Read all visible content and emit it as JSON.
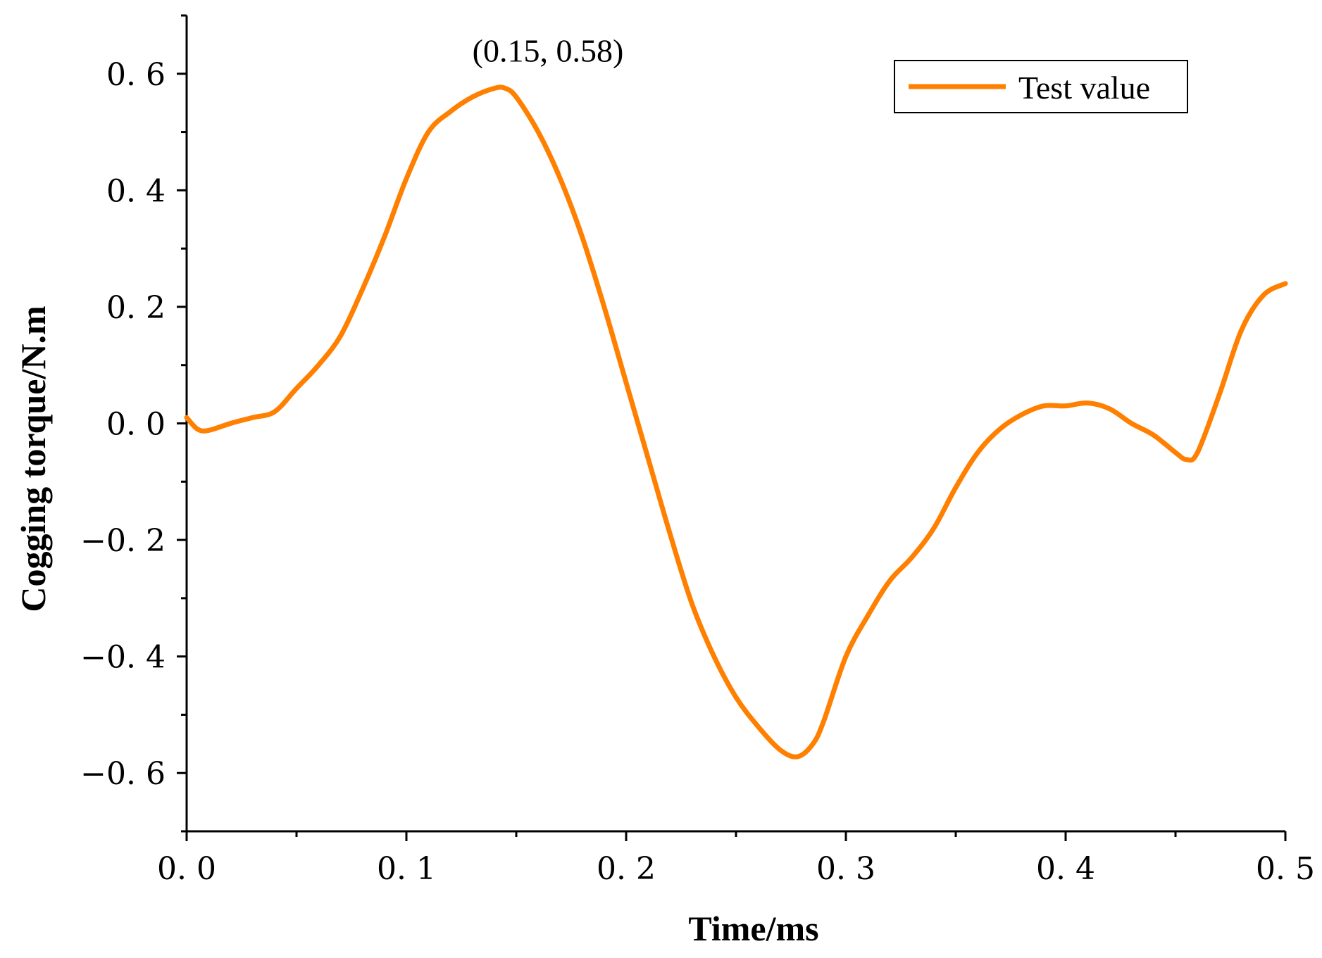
{
  "chart_data": {
    "type": "line",
    "title": "",
    "xlabel": "Time/ms",
    "ylabel": "Cogging torque/N.m",
    "xlim": [
      0,
      0.5
    ],
    "ylim": [
      -0.7,
      0.7
    ],
    "grid": false,
    "legend_position": "top-right",
    "x_ticks": [
      0.0,
      0.1,
      0.2,
      0.3,
      0.4,
      0.5
    ],
    "x_tick_labels": [
      "0. 0",
      "0. 1",
      "0. 2",
      "0. 3",
      "0. 4",
      "0. 5"
    ],
    "y_ticks": [
      0.6,
      0.4,
      0.2,
      0.0,
      -0.2,
      -0.4,
      -0.6
    ],
    "y_tick_labels": [
      "0. 6",
      "0. 4",
      "0. 2",
      "0. 0",
      "−0. 2",
      "−0. 4",
      "−0. 6"
    ],
    "annotation": {
      "text": "(0.15, 0.58)",
      "x": 0.15,
      "y": 0.58
    },
    "series": [
      {
        "name": "Test value",
        "color": "#ff8000",
        "x": [
          0.0,
          0.005,
          0.01,
          0.02,
          0.03,
          0.04,
          0.05,
          0.06,
          0.07,
          0.08,
          0.09,
          0.1,
          0.11,
          0.12,
          0.13,
          0.14,
          0.145,
          0.15,
          0.16,
          0.17,
          0.18,
          0.19,
          0.2,
          0.21,
          0.22,
          0.23,
          0.24,
          0.25,
          0.26,
          0.27,
          0.278,
          0.285,
          0.29,
          0.3,
          0.31,
          0.32,
          0.33,
          0.34,
          0.35,
          0.36,
          0.37,
          0.38,
          0.39,
          0.4,
          0.41,
          0.42,
          0.43,
          0.44,
          0.45,
          0.455,
          0.46,
          0.47,
          0.48,
          0.49,
          0.5
        ],
        "values": [
          0.01,
          -0.01,
          -0.012,
          0.0,
          0.01,
          0.02,
          0.06,
          0.1,
          0.15,
          0.23,
          0.32,
          0.42,
          0.5,
          0.535,
          0.56,
          0.575,
          0.575,
          0.56,
          0.5,
          0.42,
          0.32,
          0.2,
          0.07,
          -0.06,
          -0.19,
          -0.31,
          -0.4,
          -0.47,
          -0.52,
          -0.56,
          -0.572,
          -0.55,
          -0.51,
          -0.4,
          -0.33,
          -0.27,
          -0.23,
          -0.18,
          -0.11,
          -0.05,
          -0.01,
          0.015,
          0.03,
          0.03,
          0.035,
          0.025,
          0.0,
          -0.02,
          -0.05,
          -0.062,
          -0.05,
          0.05,
          0.16,
          0.22,
          0.24
        ]
      }
    ]
  }
}
